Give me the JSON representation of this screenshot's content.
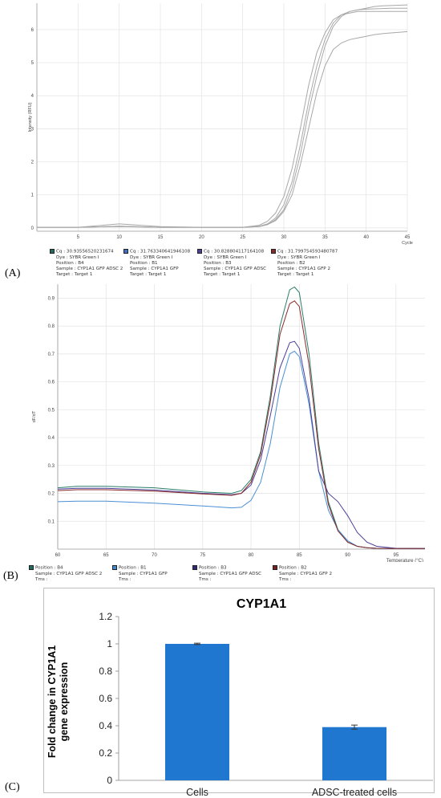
{
  "panels": [
    "(A)",
    "(B)",
    "(C)"
  ],
  "chart_data": [
    {
      "type": "line",
      "xlabel": "Cycle",
      "ylabel": "Intensity (RFU)",
      "xlim": [
        0,
        45
      ],
      "ylim": [
        -0.1,
        6.8
      ],
      "xticks": [
        "5",
        "10",
        "15",
        "20",
        "25",
        "30",
        "35",
        "40",
        "45"
      ],
      "yticks": [
        "0",
        "1",
        "2",
        "3",
        "4",
        "5",
        "6"
      ],
      "grid": true,
      "series": [
        {
          "x": [
            0,
            5,
            10,
            15,
            20,
            25,
            27,
            28,
            29,
            30,
            31,
            32,
            33,
            34,
            35,
            36,
            37,
            38,
            39,
            40,
            41,
            42,
            43,
            44,
            45
          ],
          "values": [
            0.02,
            0.02,
            0.12,
            0.04,
            0.02,
            0.02,
            0.08,
            0.2,
            0.45,
            0.95,
            1.8,
            3.0,
            4.3,
            5.3,
            5.9,
            6.3,
            6.45,
            6.5,
            6.55,
            6.55,
            6.55,
            6.55,
            6.55,
            6.55,
            6.55
          ]
        },
        {
          "x": [
            0,
            5,
            10,
            15,
            20,
            25,
            27,
            28,
            29,
            30,
            31,
            32,
            33,
            34,
            35,
            36,
            37,
            38,
            39,
            40,
            41,
            42,
            43,
            44,
            45
          ],
          "values": [
            0.02,
            0.02,
            0.05,
            0.02,
            0.02,
            0.02,
            0.05,
            0.12,
            0.3,
            0.7,
            1.4,
            2.5,
            3.8,
            4.9,
            5.7,
            6.2,
            6.45,
            6.55,
            6.6,
            6.62,
            6.63,
            6.64,
            6.65,
            6.65,
            6.65
          ]
        },
        {
          "x": [
            0,
            5,
            10,
            15,
            20,
            25,
            27,
            28,
            29,
            30,
            31,
            32,
            33,
            34,
            35,
            36,
            37,
            38,
            39,
            40,
            41,
            42,
            43,
            44,
            45
          ],
          "values": [
            0.02,
            0.02,
            0.05,
            0.02,
            0.02,
            0.02,
            0.04,
            0.1,
            0.25,
            0.55,
            1.2,
            2.2,
            3.5,
            4.6,
            5.5,
            6.1,
            6.4,
            6.55,
            6.6,
            6.65,
            6.7,
            6.72,
            6.73,
            6.74,
            6.75
          ]
        },
        {
          "x": [
            0,
            5,
            10,
            15,
            20,
            25,
            27,
            28,
            29,
            30,
            31,
            32,
            33,
            34,
            35,
            36,
            37,
            38,
            39,
            40,
            41,
            42,
            43,
            44,
            45
          ],
          "values": [
            0.02,
            0.02,
            0.04,
            0.02,
            0.02,
            0.02,
            0.04,
            0.1,
            0.22,
            0.5,
            1.0,
            1.9,
            3.0,
            4.1,
            4.9,
            5.4,
            5.6,
            5.7,
            5.75,
            5.8,
            5.85,
            5.88,
            5.9,
            5.92,
            5.94
          ]
        }
      ],
      "legend": [
        {
          "color": "#1f6b62",
          "lines": [
            "Cq : 30.935565202316​74",
            "Dye : SYBR Green I",
            "Position : B4",
            "Sample : CYP1A1 GFP ADSC 2",
            "Target : Target 1"
          ]
        },
        {
          "color": "#3a6fc4",
          "lines": [
            "Cq : 31.763340641946108",
            "Dye : SYBR Green I",
            "Position : B1",
            "Sample : CYP1A1 GFP",
            "Target : Target 1"
          ]
        },
        {
          "color": "#4b3f9a",
          "lines": [
            "Cq : 30.828804117164108",
            "Dye : SYBR Green I",
            "Position : B3",
            "Sample : CYP1A1 GFP ADSC",
            "Target : Target 1"
          ]
        },
        {
          "color": "#8b2a2a",
          "lines": [
            "Cq : 31.799754593480787",
            "Dye : SYBR Green I",
            "Position : B2",
            "Sample : CYP1A1 GFP 2",
            "Target : Target 1"
          ]
        }
      ]
    },
    {
      "type": "line",
      "xlabel": "Temperature (°C)",
      "ylabel": "dF/dT",
      "xlim": [
        60,
        98
      ],
      "ylim": [
        0,
        0.95
      ],
      "xticks": [
        "60",
        "65",
        "70",
        "75",
        "80",
        "85",
        "90",
        "95"
      ],
      "yticks": [
        "0.1",
        "0.2",
        "0.3",
        "0.4",
        "0.5",
        "0.6",
        "0.7",
        "0.8",
        "0.9"
      ],
      "grid": true,
      "series": [
        {
          "name": "B4",
          "color": "#2a7d6a",
          "x": [
            60,
            62,
            65,
            70,
            75,
            78,
            79,
            80,
            81,
            82,
            83,
            84,
            84.5,
            85,
            86,
            87,
            88,
            89,
            90,
            91,
            92,
            93,
            95,
            98
          ],
          "values": [
            0.22,
            0.225,
            0.225,
            0.22,
            0.205,
            0.2,
            0.21,
            0.25,
            0.35,
            0.55,
            0.8,
            0.93,
            0.94,
            0.92,
            0.7,
            0.38,
            0.17,
            0.07,
            0.025,
            0.01,
            0.005,
            0.003,
            0.002,
            0.002
          ]
        },
        {
          "name": "B1",
          "color": "#4a8fd4",
          "x": [
            60,
            62,
            65,
            70,
            75,
            78,
            79,
            80,
            81,
            82,
            83,
            84,
            84.5,
            85,
            86,
            87,
            88,
            89,
            90,
            91,
            92,
            93,
            95,
            98
          ],
          "values": [
            0.17,
            0.172,
            0.172,
            0.165,
            0.155,
            0.148,
            0.15,
            0.175,
            0.24,
            0.38,
            0.58,
            0.7,
            0.71,
            0.69,
            0.52,
            0.28,
            0.14,
            0.07,
            0.03,
            0.01,
            0.005,
            0.003,
            0.002,
            0.002
          ]
        },
        {
          "name": "B3",
          "color": "#4b3f9a",
          "x": [
            60,
            62,
            65,
            70,
            75,
            78,
            79,
            80,
            81,
            82,
            83,
            84,
            84.5,
            85,
            86,
            87,
            88,
            89,
            90,
            91,
            92,
            93,
            95,
            98
          ],
          "values": [
            0.215,
            0.218,
            0.218,
            0.212,
            0.2,
            0.195,
            0.2,
            0.23,
            0.32,
            0.48,
            0.65,
            0.74,
            0.745,
            0.72,
            0.54,
            0.28,
            0.2,
            0.17,
            0.12,
            0.06,
            0.025,
            0.01,
            0.003,
            0.002
          ]
        },
        {
          "name": "B2",
          "color": "#8b2a2a",
          "x": [
            60,
            62,
            65,
            70,
            75,
            78,
            79,
            80,
            81,
            82,
            83,
            84,
            84.5,
            85,
            86,
            87,
            88,
            89,
            90,
            91,
            92,
            93,
            95,
            98
          ],
          "values": [
            0.21,
            0.213,
            0.213,
            0.208,
            0.198,
            0.193,
            0.2,
            0.24,
            0.34,
            0.53,
            0.77,
            0.88,
            0.89,
            0.87,
            0.66,
            0.36,
            0.16,
            0.065,
            0.025,
            0.01,
            0.005,
            0.003,
            0.002,
            0.002
          ]
        }
      ],
      "legend": [
        {
          "color": "#1f6b62",
          "lines": [
            "Position : B4",
            "Sample : CYP1A1 GFP ADSC 2",
            "Tms :"
          ]
        },
        {
          "color": "#3a8ad4",
          "lines": [
            "Position : B1",
            "Sample : CYP1A1 GFP",
            "Tms :"
          ]
        },
        {
          "color": "#2f2a7a",
          "lines": [
            "Position : B3",
            "Sample : CYP1A1 GFP ADSC",
            "Tms :"
          ]
        },
        {
          "color": "#7a1f1f",
          "lines": [
            "Position : B2",
            "Sample : CYP1A1 GFP 2",
            "Tms :"
          ]
        }
      ]
    },
    {
      "type": "bar",
      "title": "CYP1A1",
      "ylabel": "Fold change in CYP1A1 gene expression",
      "categories": [
        "Cells",
        "ADSC-treated cells"
      ],
      "values": [
        1.0,
        0.39
      ],
      "errors": [
        0.005,
        0.015
      ],
      "ylim": [
        0,
        1.2
      ],
      "yticks": [
        "0",
        "0.2",
        "0.4",
        "0.6",
        "0.8",
        "1",
        "1.2"
      ],
      "bar_color": "#1f77d0",
      "grid": false
    }
  ]
}
